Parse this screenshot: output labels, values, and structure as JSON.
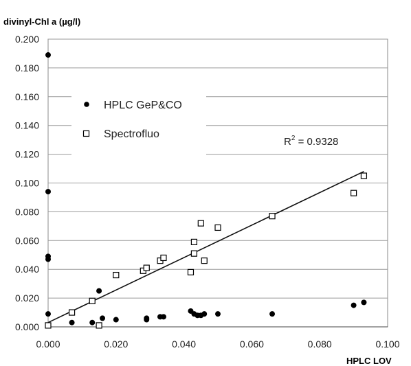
{
  "chart_data": {
    "type": "scatter",
    "ylabel": "divinyl-Chl a (µg/l)",
    "xlabel": "HPLC LOV",
    "xlim": [
      0,
      0.1
    ],
    "ylim": [
      0,
      0.2
    ],
    "x_ticks": [
      "0.000",
      "0.020",
      "0.040",
      "0.060",
      "0.080",
      "0.100"
    ],
    "y_ticks": [
      "0.000",
      "0.020",
      "0.040",
      "0.060",
      "0.080",
      "0.100",
      "0.120",
      "0.140",
      "0.160",
      "0.180",
      "0.200"
    ],
    "grid": "horizontal",
    "legend_position": "top-left",
    "series": [
      {
        "name": "HPLC GeP&CO",
        "marker": "filled-circle",
        "color": "#000000",
        "points": [
          [
            0.0,
            0.189
          ],
          [
            0.0,
            0.094
          ],
          [
            0.0,
            0.049
          ],
          [
            0.0,
            0.047
          ],
          [
            0.0,
            0.009
          ],
          [
            0.007,
            0.003
          ],
          [
            0.013,
            0.003
          ],
          [
            0.015,
            0.025
          ],
          [
            0.016,
            0.006
          ],
          [
            0.02,
            0.005
          ],
          [
            0.029,
            0.005
          ],
          [
            0.029,
            0.006
          ],
          [
            0.033,
            0.007
          ],
          [
            0.034,
            0.007
          ],
          [
            0.042,
            0.011
          ],
          [
            0.043,
            0.009
          ],
          [
            0.044,
            0.008
          ],
          [
            0.045,
            0.008
          ],
          [
            0.046,
            0.009
          ],
          [
            0.05,
            0.009
          ],
          [
            0.066,
            0.009
          ],
          [
            0.09,
            0.015
          ],
          [
            0.093,
            0.017
          ]
        ]
      },
      {
        "name": "Spectrofluo",
        "marker": "open-square",
        "color": "#000000",
        "points": [
          [
            0.0,
            0.001
          ],
          [
            0.007,
            0.01
          ],
          [
            0.013,
            0.018
          ],
          [
            0.015,
            0.001
          ],
          [
            0.02,
            0.036
          ],
          [
            0.028,
            0.039
          ],
          [
            0.029,
            0.041
          ],
          [
            0.033,
            0.046
          ],
          [
            0.034,
            0.048
          ],
          [
            0.042,
            0.038
          ],
          [
            0.043,
            0.051
          ],
          [
            0.043,
            0.059
          ],
          [
            0.045,
            0.072
          ],
          [
            0.046,
            0.046
          ],
          [
            0.05,
            0.069
          ],
          [
            0.066,
            0.077
          ],
          [
            0.09,
            0.093
          ],
          [
            0.093,
            0.105
          ]
        ]
      }
    ],
    "trendline": {
      "x": [
        0.0,
        0.093
      ],
      "y": [
        0.003,
        0.108
      ]
    },
    "annotation": {
      "r2_prefix": "R",
      "r2_sup": "2",
      "r2_value": " = 0.9328"
    }
  }
}
